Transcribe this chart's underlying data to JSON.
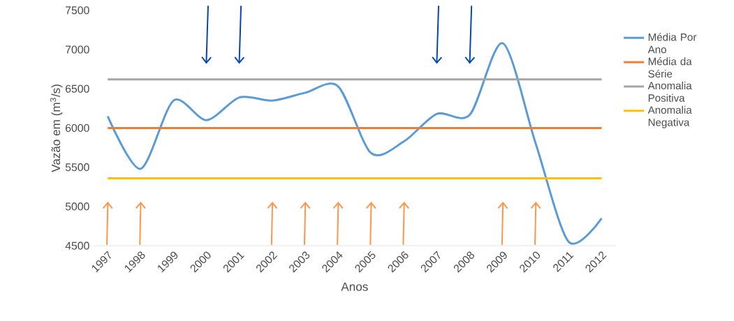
{
  "chart_data": {
    "type": "line",
    "xlabel": "Anos",
    "ylabel": "Vazão em (m$^{3}$/s)",
    "categories": [
      "1997",
      "1998",
      "1999",
      "2000",
      "2001",
      "2002",
      "2003",
      "2004",
      "2005",
      "2006",
      "2007",
      "2008",
      "2009",
      "2010",
      "2011",
      "2012"
    ],
    "series": [
      {
        "name": "Média Por Ano",
        "color": "#5b9bd5",
        "values": [
          6150,
          5480,
          6350,
          6100,
          6390,
          6350,
          6450,
          6530,
          5680,
          5830,
          6180,
          6170,
          7080,
          5800,
          4550,
          4850
        ]
      },
      {
        "name": "Média da Série",
        "color": "#ed7d31",
        "values": [
          6000,
          6000,
          6000,
          6000,
          6000,
          6000,
          6000,
          6000,
          6000,
          6000,
          6000,
          6000,
          6000,
          6000,
          6000,
          6000
        ]
      },
      {
        "name": "Anomalia Positiva",
        "color": "#a5a5a5",
        "values": [
          6620,
          6620,
          6620,
          6620,
          6620,
          6620,
          6620,
          6620,
          6620,
          6620,
          6620,
          6620,
          6620,
          6620,
          6620,
          6620
        ]
      },
      {
        "name": "Anomalia Negativa",
        "color": "#ffc000",
        "values": [
          5360,
          5360,
          5360,
          5360,
          5360,
          5360,
          5360,
          5360,
          5360,
          5360,
          5360,
          5360,
          5360,
          5360,
          5360,
          5360
        ]
      }
    ],
    "ylim": [
      4500,
      7500
    ],
    "yticks": [
      4500,
      5000,
      5500,
      6000,
      6500,
      7000,
      7500
    ],
    "legend": "right",
    "marker": "none",
    "line_style": "solid"
  }
}
